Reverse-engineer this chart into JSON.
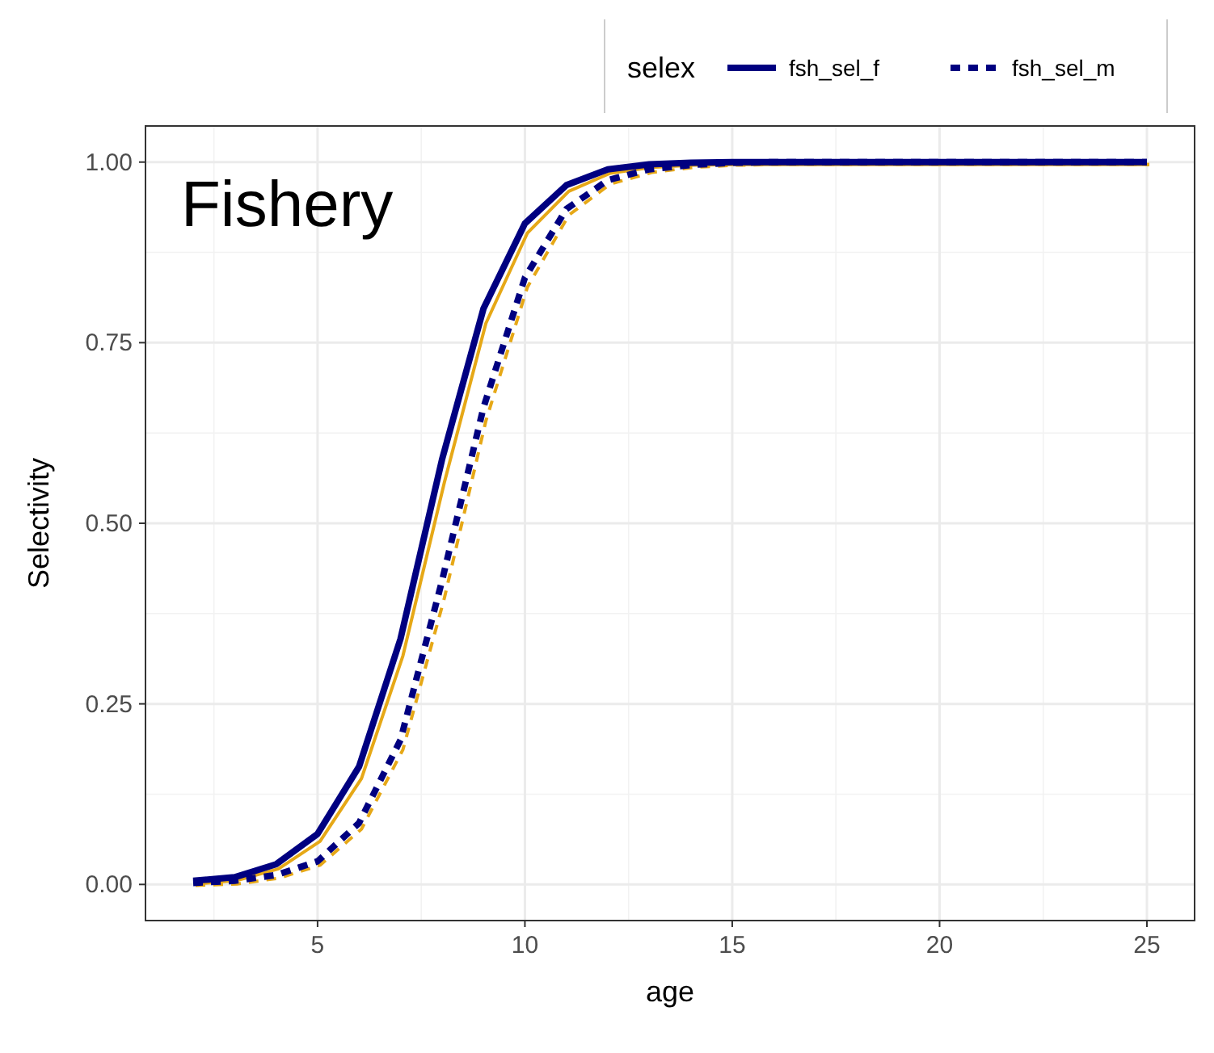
{
  "chart_data": {
    "type": "line",
    "xlabel": "age",
    "ylabel": "Selectivity",
    "legend_title": "selex",
    "annotations": [
      "Fishery"
    ],
    "x": [
      2,
      3,
      4,
      5,
      6,
      7,
      8,
      9,
      10,
      11,
      12,
      13,
      14,
      15,
      16,
      17,
      18,
      19,
      20,
      21,
      22,
      23,
      24,
      25
    ],
    "xlim": [
      0.85,
      26.15
    ],
    "xticks": [
      5,
      10,
      15,
      20,
      25
    ],
    "ylim": [
      -0.05,
      1.05
    ],
    "yticks": [
      {
        "value": 0,
        "label": "0.00"
      },
      {
        "value": 0.25,
        "label": "0.25"
      },
      {
        "value": 0.5,
        "label": "0.50"
      },
      {
        "value": 0.75,
        "label": "0.75"
      },
      {
        "value": 1,
        "label": "1.00"
      }
    ],
    "grid": true,
    "legend": "top right",
    "series": [
      {
        "color": "#e6a817",
        "line_style": "solid",
        "values": [
          0.004,
          0.009,
          0.025,
          0.063,
          0.15,
          0.32,
          0.56,
          0.78,
          0.905,
          0.963,
          0.988,
          0.996,
          0.999,
          1,
          1,
          1,
          1,
          1,
          1,
          1,
          1,
          1,
          1,
          1
        ]
      },
      {
        "color": "#e6a817",
        "line_style": "dashed",
        "values": [
          0.002,
          0.004,
          0.012,
          0.03,
          0.08,
          0.19,
          0.4,
          0.645,
          0.83,
          0.93,
          0.973,
          0.989,
          0.996,
          0.999,
          1,
          1,
          1,
          1,
          1,
          1,
          1,
          1,
          1,
          1
        ]
      },
      {
        "name": "fsh_sel_f",
        "color": "#000080",
        "line_style": "solid",
        "values": [
          0.005,
          0.01,
          0.028,
          0.07,
          0.163,
          0.34,
          0.588,
          0.797,
          0.915,
          0.968,
          0.99,
          0.997,
          0.999,
          1,
          1,
          1,
          1,
          1,
          1,
          1,
          1,
          1,
          1,
          1
        ]
      },
      {
        "name": "fsh_sel_m",
        "color": "#000080",
        "line_style": "dashed",
        "values": [
          0.002,
          0.005,
          0.013,
          0.032,
          0.085,
          0.2,
          0.42,
          0.66,
          0.84,
          0.935,
          0.975,
          0.99,
          0.996,
          0.999,
          1,
          1,
          1,
          1,
          1,
          1,
          1,
          1,
          1,
          1
        ]
      }
    ]
  }
}
